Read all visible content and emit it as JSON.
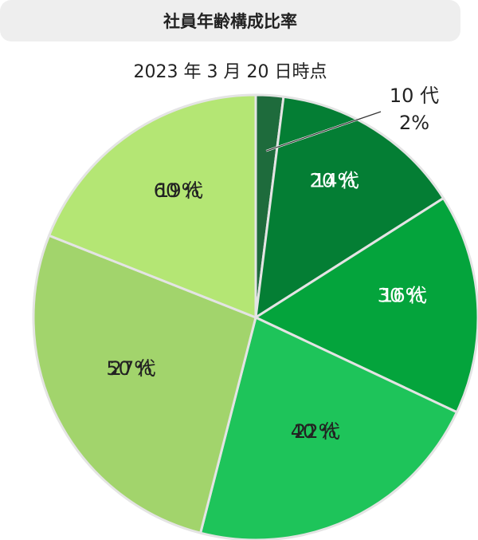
{
  "chart_data": {
    "type": "pie",
    "title": "社員年齢構成比率",
    "subtitle": "2023 年 3 月 20 日時点",
    "categories": [
      "10 代",
      "20 代",
      "30 代",
      "40 代",
      "50 代",
      "60 代"
    ],
    "values": [
      2,
      14,
      16,
      22,
      27,
      19
    ],
    "value_labels": [
      "2%",
      "14%",
      "16%",
      "22%",
      "27%",
      "19%"
    ],
    "colors": [
      "#1e6b3c",
      "#047e34",
      "#04a43c",
      "#1ec45a",
      "#a2d46c",
      "#b4e674"
    ],
    "label_colors": [
      "#222222",
      "#ffffff",
      "#ffffff",
      "#222222",
      "#222222",
      "#222222"
    ],
    "start_angle": "12 o'clock",
    "direction": "clockwise",
    "legend": "none"
  }
}
